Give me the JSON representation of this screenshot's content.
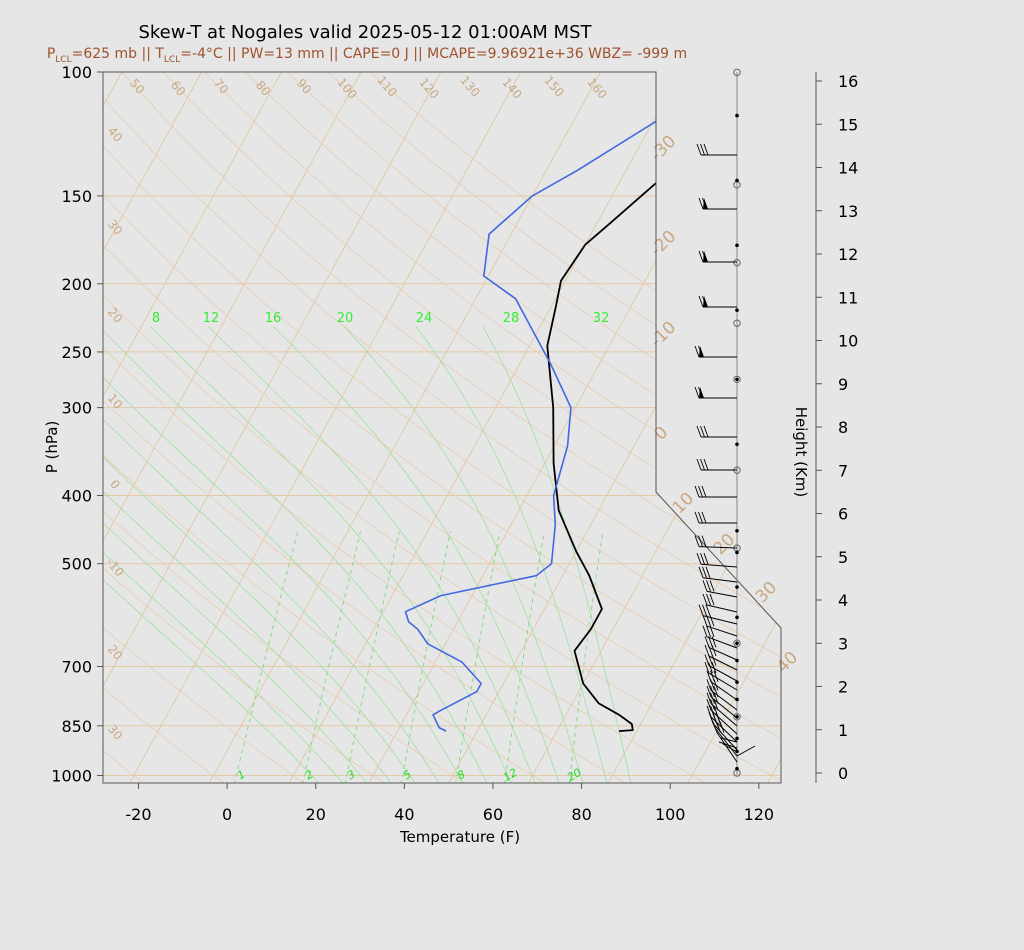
{
  "chart_data": {
    "type": "line",
    "title": "Skew-T at Nogales valid 2025-05-12 01:00AM MST",
    "subtitle": {
      "p_lcl_a": "P",
      "p_lcl_sub": "LCL",
      "p_lcl_b": "=625 mb || T",
      "t_lcl_sub": "LCL",
      "rest": "=-4°C || PW=13 mm || CAPE=0 J || MCAPE=9.96921e+36 WBZ= -999 m"
    },
    "xlabel": "Temperature (F)",
    "ylabel": "P (hPa)",
    "y2label": "Height (Km)",
    "xlim": [
      -28,
      125
    ],
    "ylim_hpa": [
      1025,
      100
    ],
    "y_scale": "log",
    "x_ticks": [
      "-20",
      "0",
      "20",
      "40",
      "60",
      "80",
      "100",
      "120"
    ],
    "p_ticks": [
      "100",
      "150",
      "200",
      "250",
      "300",
      "400",
      "500",
      "700",
      "850",
      "1000"
    ],
    "height_ticks": [
      "0",
      "1",
      "2",
      "3",
      "4",
      "5",
      "6",
      "7",
      "8",
      "9",
      "10",
      "11",
      "12",
      "13",
      "14",
      "15",
      "16"
    ],
    "mixing_ratio_labels": [
      "1",
      "2",
      "3",
      "5",
      "8",
      "12",
      "20"
    ],
    "wetbulb_labels": [
      "8",
      "12",
      "16",
      "20",
      "24",
      "28",
      "32"
    ],
    "isotherm_labels_c": [
      "-30",
      "-20",
      "-10",
      "0",
      "10",
      "20",
      "30",
      "40"
    ],
    "dry_adiabat_labels": [
      "50",
      "60",
      "70",
      "80",
      "90",
      "100",
      "110",
      "120",
      "130",
      "140",
      "150",
      "160"
    ],
    "dry_adiabat_left_labels": [
      "40",
      "30",
      "20",
      "10",
      "0",
      "-10",
      "20",
      "30"
    ],
    "series": [
      {
        "name": "Temperature",
        "color": "#000000",
        "points": [
          [
            82,
            865
          ],
          [
            85,
            862
          ],
          [
            84,
            845
          ],
          [
            80,
            820
          ],
          [
            74,
            790
          ],
          [
            68,
            740
          ],
          [
            62,
            665
          ],
          [
            63,
            620
          ],
          [
            63,
            580
          ],
          [
            56,
            520
          ],
          [
            50,
            480
          ],
          [
            41,
            420
          ],
          [
            34,
            360
          ],
          [
            27,
            300
          ],
          [
            18,
            245
          ],
          [
            15,
            215
          ],
          [
            13,
            198
          ],
          [
            14,
            176
          ],
          [
            17,
            164
          ],
          [
            24,
            138
          ],
          [
            37,
            112
          ],
          [
            51,
            100
          ]
        ]
      },
      {
        "name": "Dewpoint",
        "color": "#4169e1",
        "points": [
          [
            43,
            865
          ],
          [
            41,
            855
          ],
          [
            38,
            820
          ],
          [
            39,
            810
          ],
          [
            45,
            760
          ],
          [
            45,
            740
          ],
          [
            38,
            690
          ],
          [
            28,
            650
          ],
          [
            24,
            620
          ],
          [
            21,
            605
          ],
          [
            19,
            585
          ],
          [
            25,
            555
          ],
          [
            44,
            520
          ],
          [
            46,
            500
          ],
          [
            42,
            440
          ],
          [
            38,
            400
          ],
          [
            35,
            340
          ],
          [
            31,
            300
          ],
          [
            21,
            260
          ],
          [
            5,
            210
          ],
          [
            -5,
            195
          ],
          [
            -9,
            170
          ],
          [
            -4,
            150
          ],
          [
            3,
            138
          ],
          [
            15,
            117
          ],
          [
            24,
            100
          ]
        ]
      }
    ],
    "wind_dots_km": [
      0.1,
      0.5,
      0.8,
      1.3,
      1.7,
      2.1,
      2.6,
      3.0,
      3.6,
      4.3,
      5.1,
      5.6,
      7.6,
      9.1,
      10.7,
      12.2,
      13.7,
      15.2
    ],
    "wind_circles_km": [
      0,
      1.3,
      3.0,
      5.2,
      7.0,
      9.1,
      10.4,
      11.8,
      13.6,
      16.2
    ],
    "colors": {
      "background": "#e6e6e6",
      "isobar": "#e3c9a4",
      "isotherm": "#e0c49c",
      "adiabat": "#e8cdb0",
      "mixing": "#7fdd7f",
      "moist": "#9ee09e",
      "temperature": "#000000",
      "dewpoint": "#4169e1",
      "subtitle": "#a0522d"
    }
  }
}
